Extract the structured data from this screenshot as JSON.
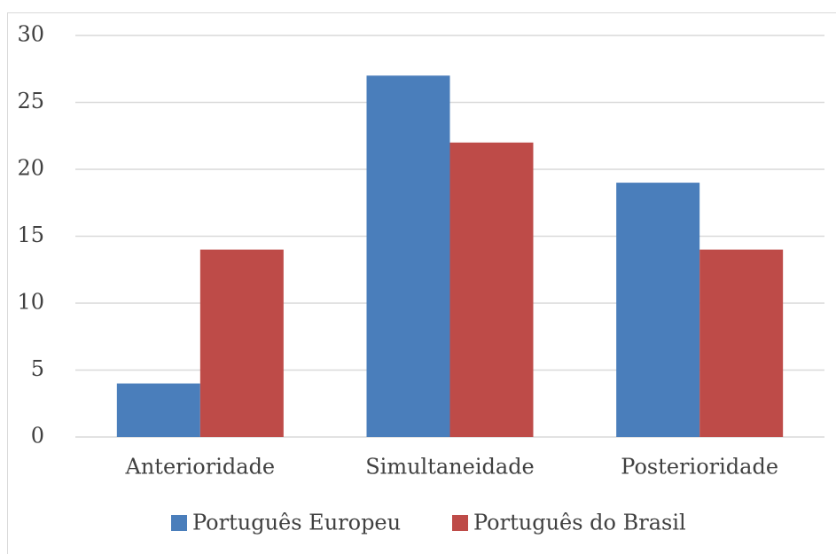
{
  "chart_data": {
    "type": "bar",
    "categories": [
      "Anterioridade",
      "Simultaneidade",
      "Posterioridade"
    ],
    "series": [
      {
        "name": "Português Europeu",
        "color": "#4a7ebb",
        "values": [
          4,
          27,
          19
        ]
      },
      {
        "name": "Português do Brasil",
        "color": "#be4b48",
        "values": [
          14,
          22,
          14
        ]
      }
    ],
    "ylim": [
      0,
      30
    ],
    "yticks": [
      0,
      5,
      10,
      15,
      20,
      25,
      30
    ],
    "grid": true,
    "legend": "bottom"
  }
}
